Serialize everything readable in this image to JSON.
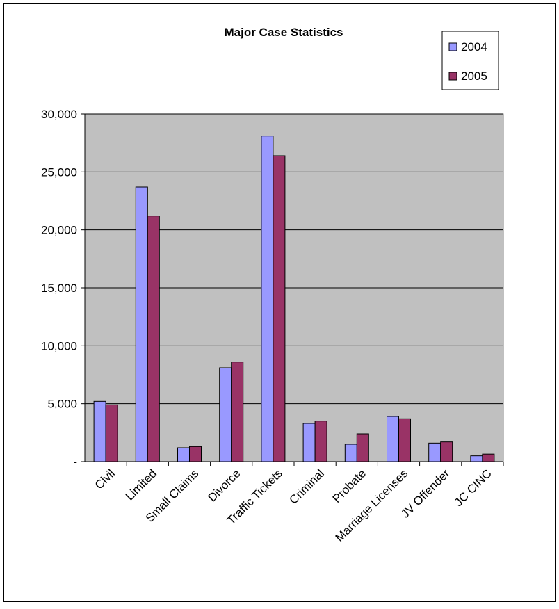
{
  "chart_data": {
    "type": "bar",
    "title": "Major Case Statistics",
    "xlabel": "",
    "ylabel": "",
    "categories": [
      "Civil",
      "Limited",
      "Small Claims",
      "Divorce",
      "Traffic Tickets",
      "Criminal",
      "Probate",
      "Marriage Licenses",
      "JV Offender",
      "JC CINC"
    ],
    "series": [
      {
        "name": "2004",
        "values": [
          5200,
          23700,
          1200,
          8100,
          28100,
          3300,
          1500,
          3900,
          1600,
          500
        ]
      },
      {
        "name": "2005",
        "values": [
          4900,
          21200,
          1300,
          8600,
          26400,
          3500,
          2400,
          3700,
          1700,
          650
        ]
      }
    ],
    "ylim": [
      0,
      30000
    ],
    "yticks": [
      0,
      5000,
      10000,
      15000,
      20000,
      25000,
      30000
    ],
    "ytick_labels": [
      "-",
      "5,000",
      "10,000",
      "15,000",
      "20,000",
      "25,000",
      "30,000"
    ],
    "grid": true,
    "legend_position": "top-right",
    "colors": {
      "series_2004": "#9999ff",
      "series_2005": "#993366",
      "plot_background": "#c0c0c0",
      "frame": "#000000"
    }
  }
}
